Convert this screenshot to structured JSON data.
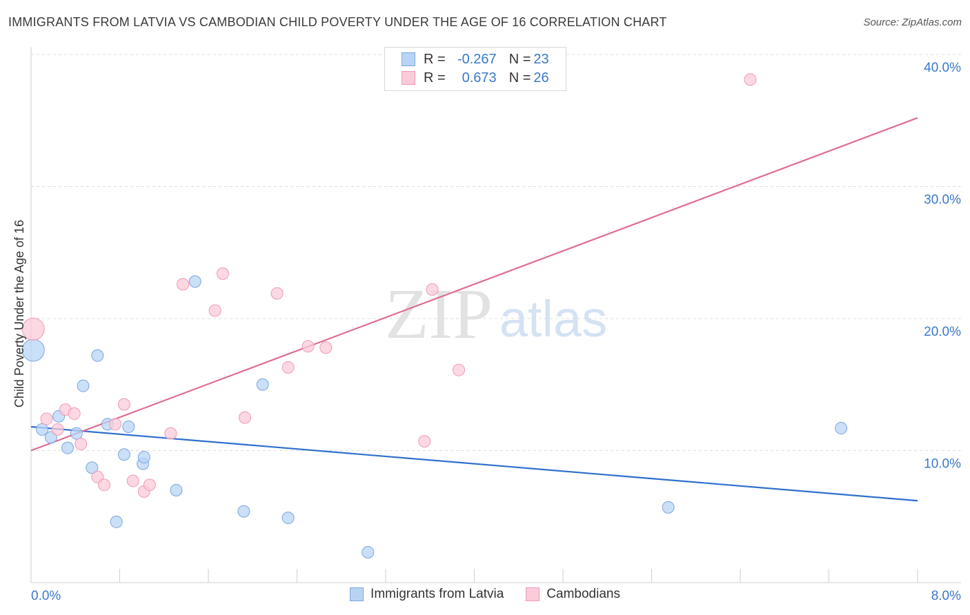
{
  "title": "IMMIGRANTS FROM LATVIA VS CAMBODIAN CHILD POVERTY UNDER THE AGE OF 16 CORRELATION CHART",
  "source": "Source: ZipAtlas.com",
  "watermark": {
    "zip": "ZIP",
    "atlas": "atlas"
  },
  "legend": {
    "rows": [
      {
        "r_label": "R =",
        "r_value": "-0.267",
        "n_label": "N =",
        "n_value": "23",
        "fill": "#b8d4f5",
        "stroke": "#7aa6de"
      },
      {
        "r_label": "R =",
        "r_value": "0.673",
        "n_label": "N =",
        "n_value": "26",
        "fill": "#fbcbd9",
        "stroke": "#ee9ab5"
      }
    ]
  },
  "bottom_legend": [
    {
      "label": "Immigrants from Latvia",
      "fill": "#b8d4f5",
      "stroke": "#7aa6de"
    },
    {
      "label": "Cambodians",
      "fill": "#fbcbd9",
      "stroke": "#ee9ab5"
    }
  ],
  "chart_data": {
    "type": "scatter",
    "title": "IMMIGRANTS FROM LATVIA VS CAMBODIAN CHILD POVERTY UNDER THE AGE OF 16 CORRELATION CHART",
    "xlabel": "",
    "ylabel": "Child Poverty Under the Age of 16",
    "xlim": [
      0,
      8
    ],
    "ylim": [
      0,
      40
    ],
    "x_tick_labels": [
      {
        "value": 0,
        "label": "0.0%"
      },
      {
        "value": 8,
        "label": "8.0%"
      }
    ],
    "y_tick_labels": [
      {
        "value": 10,
        "label": "10.0%"
      },
      {
        "value": 20,
        "label": "20.0%"
      },
      {
        "value": 30,
        "label": "30.0%"
      },
      {
        "value": 40,
        "label": "40.0%"
      }
    ],
    "grid": true,
    "legend_position": "top-center",
    "series": [
      {
        "name": "Immigrants from Latvia",
        "color": "#7aa6de",
        "fill": "#b8d4f5",
        "line_color": "#2d6fd0",
        "trend": [
          [
            0,
            11.8
          ],
          [
            8,
            6.2
          ]
        ],
        "points": [
          [
            0.02,
            17.6
          ],
          [
            0.1,
            11.6
          ],
          [
            0.18,
            11.0
          ],
          [
            0.25,
            12.6
          ],
          [
            0.33,
            10.2
          ],
          [
            0.41,
            11.3
          ],
          [
            0.47,
            14.9
          ],
          [
            0.55,
            8.7
          ],
          [
            0.6,
            17.2
          ],
          [
            0.77,
            4.6
          ],
          [
            0.69,
            12.0
          ],
          [
            0.84,
            9.7
          ],
          [
            0.88,
            11.8
          ],
          [
            1.01,
            9.0
          ],
          [
            1.02,
            9.5
          ],
          [
            1.31,
            7.0
          ],
          [
            1.48,
            22.8
          ],
          [
            1.92,
            5.4
          ],
          [
            2.09,
            15.0
          ],
          [
            2.32,
            4.9
          ],
          [
            3.04,
            2.3
          ],
          [
            5.75,
            5.7
          ],
          [
            7.31,
            11.7
          ]
        ]
      },
      {
        "name": "Cambodians",
        "color": "#ee9ab5",
        "fill": "#fbcbd9",
        "line_color": "#e06b93",
        "trend": [
          [
            0,
            10.0
          ],
          [
            8,
            35.2
          ]
        ],
        "points": [
          [
            0.02,
            19.2
          ],
          [
            0.14,
            12.4
          ],
          [
            0.24,
            11.6
          ],
          [
            0.31,
            13.1
          ],
          [
            0.39,
            12.8
          ],
          [
            0.45,
            10.5
          ],
          [
            0.6,
            8.0
          ],
          [
            0.66,
            7.4
          ],
          [
            0.76,
            12.0
          ],
          [
            0.84,
            13.5
          ],
          [
            0.92,
            7.7
          ],
          [
            1.02,
            6.9
          ],
          [
            1.07,
            7.4
          ],
          [
            1.26,
            11.3
          ],
          [
            1.37,
            22.6
          ],
          [
            1.66,
            20.6
          ],
          [
            1.73,
            23.4
          ],
          [
            1.93,
            12.5
          ],
          [
            2.22,
            21.9
          ],
          [
            2.32,
            16.3
          ],
          [
            2.5,
            17.9
          ],
          [
            2.66,
            17.8
          ],
          [
            3.55,
            10.7
          ],
          [
            3.62,
            22.2
          ],
          [
            3.86,
            16.1
          ],
          [
            6.49,
            38.1
          ]
        ]
      }
    ]
  }
}
